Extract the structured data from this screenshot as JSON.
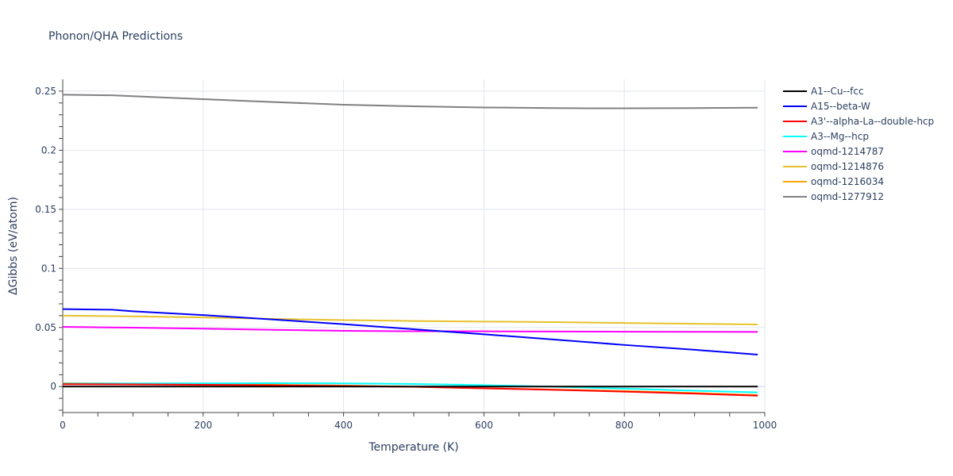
{
  "chart_data": {
    "type": "line",
    "title": "Phonon/QHA Predictions",
    "xlabel": "Temperature (K)",
    "ylabel": "ΔGibbs (eV/atom)",
    "xlim": [
      0,
      1000
    ],
    "ylim": [
      -0.022,
      0.26
    ],
    "x_ticks": [
      0,
      200,
      400,
      600,
      800,
      1000
    ],
    "y_ticks": [
      0,
      0.05,
      0.1,
      0.15,
      0.2,
      0.25
    ],
    "x_tick_labels": [
      "0",
      "200",
      "400",
      "600",
      "800",
      "1000"
    ],
    "y_tick_labels": [
      "0",
      "0.05",
      "0.1",
      "0.15",
      "0.2",
      "0.25"
    ],
    "grid": true,
    "legend_position": "right",
    "series": [
      {
        "name": "A1--Cu--fcc",
        "color": "#000000",
        "x": [
          0,
          100,
          200,
          300,
          400,
          500,
          600,
          700,
          800,
          900,
          990
        ],
        "y": [
          0,
          0,
          0,
          0,
          0,
          0,
          0,
          0,
          0,
          0,
          0
        ]
      },
      {
        "name": "A15--beta-W",
        "color": "#0000ff",
        "x": [
          0,
          70,
          100,
          200,
          300,
          400,
          500,
          600,
          700,
          800,
          900,
          990
        ],
        "y": [
          0.0655,
          0.065,
          0.0637,
          0.0605,
          0.0567,
          0.0528,
          0.0485,
          0.0442,
          0.0398,
          0.0352,
          0.0311,
          0.027
        ]
      },
      {
        "name": "A3'--alpha-La--double-hcp",
        "color": "#ff0000",
        "x": [
          0,
          100,
          200,
          300,
          400,
          500,
          600,
          700,
          800,
          900,
          990
        ],
        "y": [
          0.002,
          0.0018,
          0.0015,
          0.0011,
          0.0005,
          -0.0002,
          -0.0015,
          -0.0028,
          -0.0043,
          -0.006,
          -0.0077
        ]
      },
      {
        "name": "A3--Mg--hcp",
        "color": "#00ffff",
        "x": [
          0,
          100,
          200,
          300,
          400,
          500,
          600,
          700,
          800,
          900,
          990
        ],
        "y": [
          0.0025,
          0.0026,
          0.0027,
          0.0028,
          0.0027,
          0.0022,
          0.0012,
          -0.0002,
          -0.0018,
          -0.0035,
          -0.005
        ]
      },
      {
        "name": "oqmd-1214787",
        "color": "#ff00ff",
        "x": [
          0,
          100,
          200,
          300,
          400,
          500,
          600,
          700,
          800,
          900,
          990
        ],
        "y": [
          0.0505,
          0.0498,
          0.049,
          0.048,
          0.0472,
          0.0468,
          0.0467,
          0.0466,
          0.0464,
          0.0463,
          0.0462
        ]
      },
      {
        "name": "oqmd-1214876",
        "color": "#e6c229",
        "x": [
          0,
          100,
          200,
          300,
          400,
          500,
          600,
          700,
          800,
          900,
          990
        ],
        "y": [
          0.06,
          0.0594,
          0.0585,
          0.0572,
          0.0562,
          0.0555,
          0.055,
          0.0545,
          0.0538,
          0.0531,
          0.0525
        ]
      },
      {
        "name": "oqmd-1216034",
        "color": "#ffa500",
        "x": [
          0,
          100,
          200,
          300,
          400,
          500,
          600,
          700,
          800,
          900,
          990
        ],
        "y": [
          0.0028,
          0.0025,
          0.002,
          0.0015,
          0.0008,
          -0.0002,
          -0.0014,
          -0.0026,
          -0.0038,
          -0.0055,
          -0.0072
        ]
      },
      {
        "name": "oqmd-1277912",
        "color": "#808080",
        "x": [
          0,
          70,
          100,
          200,
          300,
          400,
          500,
          600,
          700,
          750,
          800,
          900,
          990
        ],
        "y": [
          0.247,
          0.2465,
          0.2457,
          0.2432,
          0.2408,
          0.2385,
          0.2372,
          0.2362,
          0.2357,
          0.2355,
          0.2355,
          0.2357,
          0.236
        ]
      }
    ]
  }
}
